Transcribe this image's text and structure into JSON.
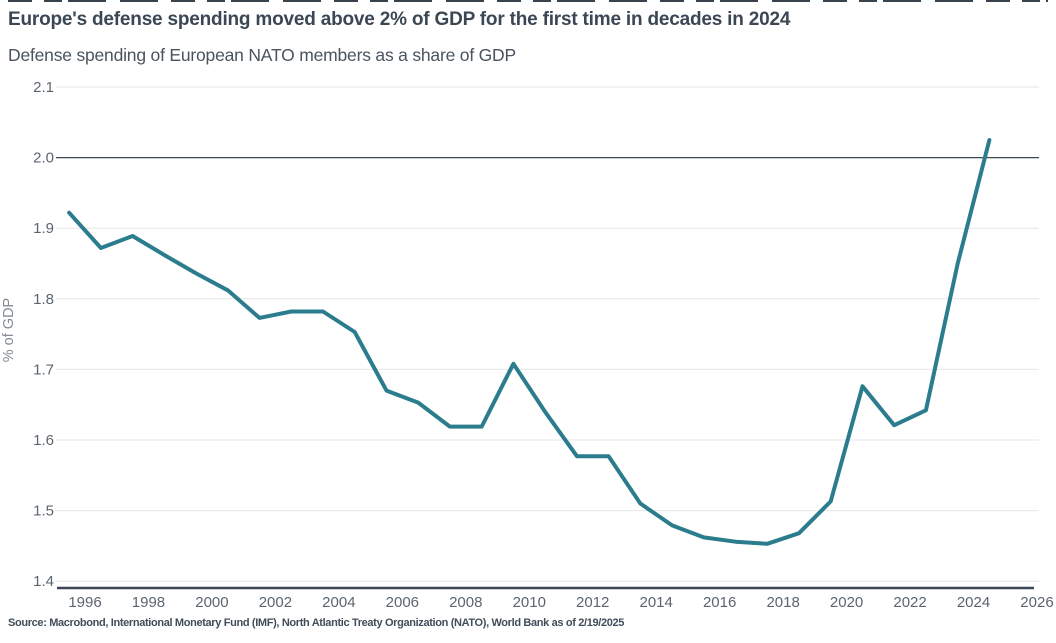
{
  "chart_data": {
    "type": "line",
    "title": "Europe's defense spending moved above 2% of GDP for the first time in decades in 2024",
    "subtitle": "Defense spending of European NATO members as a share of GDP",
    "ylabel": "% of GDP",
    "xlabel": "",
    "source": "Source: Macrobond, International Monetary Fund (IMF), North Atlantic Treaty Organization (NATO), World Bank as of 2/19/2025",
    "grid": "horizontal",
    "legend": "none",
    "ylim": [
      1.4,
      2.1
    ],
    "xlim": [
      1995.1,
      2026.1
    ],
    "yticks": [
      2.1,
      2.0,
      1.9,
      1.8,
      1.7,
      1.6,
      1.5,
      1.4
    ],
    "xticks": [
      1996,
      1998,
      2000,
      2002,
      2004,
      2006,
      2008,
      2010,
      2012,
      2014,
      2016,
      2018,
      2020,
      2022,
      2024,
      2026
    ],
    "reference_line": 2.0,
    "series": [
      {
        "name": "Defense spending of European NATO members as a share of GDP",
        "color": "#2b7d8e",
        "x": [
          1995,
          1996,
          1997,
          1998,
          1999,
          2000,
          2001,
          2002,
          2003,
          2004,
          2005,
          2006,
          2007,
          2008,
          2009,
          2010,
          2011,
          2012,
          2013,
          2014,
          2015,
          2016,
          2017,
          2018,
          2019,
          2020,
          2021,
          2022,
          2023,
          2024
        ],
        "values": [
          1.922,
          1.872,
          1.889,
          1.862,
          1.836,
          1.812,
          1.773,
          1.782,
          1.782,
          1.753,
          1.67,
          1.653,
          1.619,
          1.619,
          1.708,
          1.64,
          1.577,
          1.577,
          1.51,
          1.479,
          1.462,
          1.456,
          1.453,
          1.468,
          1.513,
          1.676,
          1.621,
          1.642,
          1.85,
          2.025
        ]
      }
    ]
  }
}
